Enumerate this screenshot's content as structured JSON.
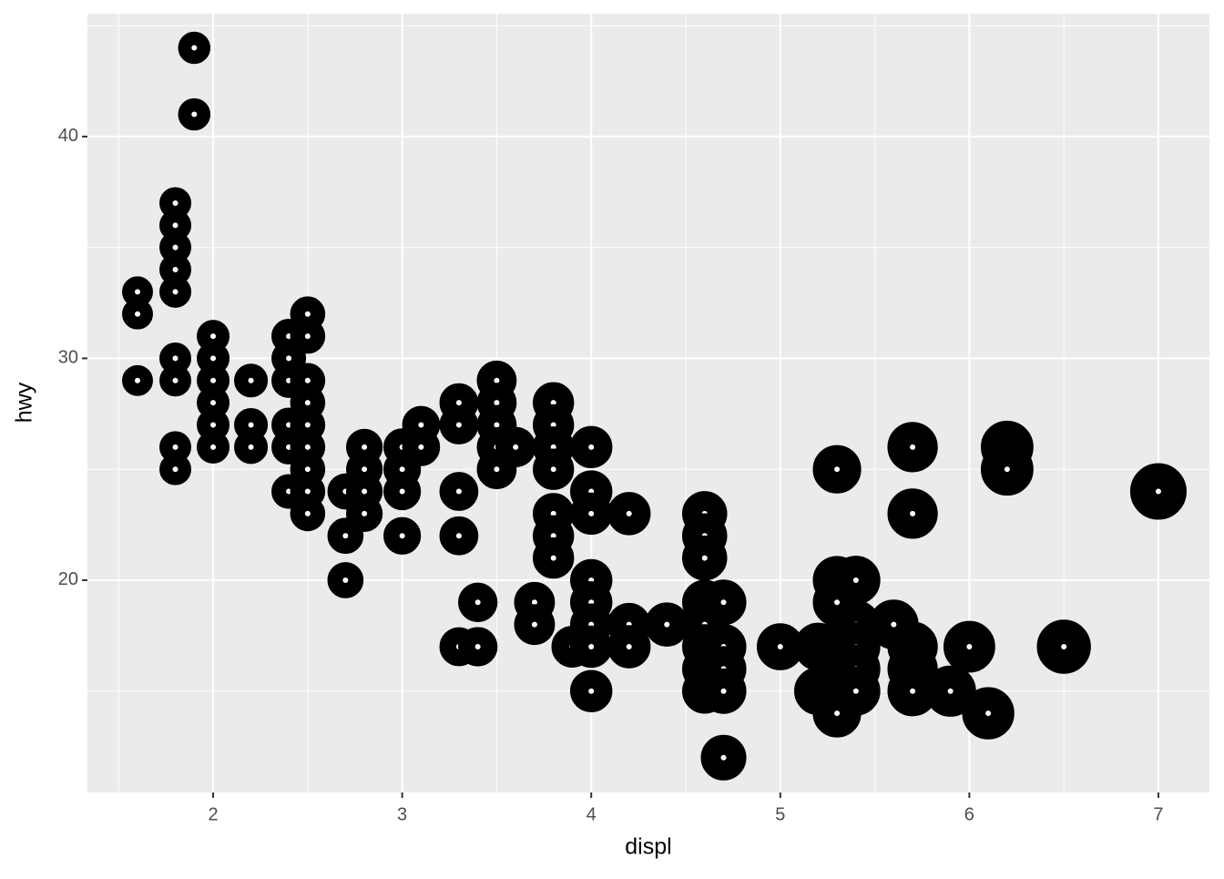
{
  "chart_data": {
    "type": "scatter",
    "x_label": "displ",
    "y_label": "hwy",
    "x": [
      1.6,
      1.6,
      1.6,
      1.8,
      1.8,
      1.8,
      1.8,
      1.8,
      1.8,
      1.8,
      1.8,
      1.8,
      1.9,
      1.9,
      2.0,
      2.0,
      2.0,
      2.0,
      2.0,
      2.0,
      2.2,
      2.2,
      2.2,
      2.4,
      2.4,
      2.4,
      2.4,
      2.4,
      2.4,
      2.5,
      2.5,
      2.5,
      2.5,
      2.5,
      2.5,
      2.5,
      2.5,
      2.5,
      2.7,
      2.7,
      2.7,
      2.8,
      2.8,
      2.8,
      2.8,
      3.0,
      3.0,
      3.0,
      3.0,
      3.1,
      3.1,
      3.3,
      3.3,
      3.3,
      3.3,
      3.3,
      3.4,
      3.4,
      3.5,
      3.5,
      3.5,
      3.5,
      3.5,
      3.6,
      3.7,
      3.7,
      3.8,
      3.8,
      3.8,
      3.8,
      3.8,
      3.8,
      3.8,
      3.9,
      4.0,
      4.0,
      4.0,
      4.0,
      4.0,
      4.0,
      4.0,
      4.0,
      4.2,
      4.2,
      4.2,
      4.4,
      4.6,
      4.6,
      4.6,
      4.6,
      4.6,
      4.6,
      4.6,
      4.6,
      4.7,
      4.7,
      4.7,
      4.7,
      4.7,
      5.0,
      5.2,
      5.2,
      5.3,
      5.3,
      5.3,
      5.3,
      5.3,
      5.3,
      5.3,
      5.4,
      5.4,
      5.4,
      5.4,
      5.4,
      5.6,
      5.7,
      5.7,
      5.7,
      5.7,
      5.7,
      5.9,
      6.0,
      6.1,
      6.2,
      6.2,
      6.5,
      7.0
    ],
    "y": [
      33,
      32,
      29,
      37,
      36,
      35,
      34,
      33,
      30,
      29,
      26,
      25,
      44,
      41,
      31,
      30,
      29,
      28,
      27,
      26,
      29,
      27,
      26,
      31,
      30,
      29,
      27,
      26,
      24,
      32,
      31,
      29,
      28,
      27,
      26,
      25,
      24,
      23,
      24,
      22,
      20,
      26,
      25,
      24,
      23,
      26,
      25,
      24,
      22,
      27,
      26,
      28,
      27,
      24,
      22,
      17,
      19,
      17,
      29,
      28,
      27,
      26,
      25,
      26,
      19,
      18,
      28,
      27,
      26,
      25,
      23,
      22,
      21,
      17,
      26,
      24,
      23,
      20,
      19,
      18,
      17,
      15,
      23,
      18,
      17,
      18,
      23,
      22,
      21,
      19,
      18,
      17,
      16,
      15,
      19,
      17,
      16,
      15,
      12,
      17,
      17,
      15,
      25,
      20,
      19,
      17,
      16,
      15,
      14,
      20,
      18,
      17,
      16,
      15,
      18,
      26,
      23,
      17,
      16,
      15,
      15,
      17,
      14,
      26,
      25,
      17,
      24
    ],
    "xlim": [
      1.335,
      7.27
    ],
    "ylim": [
      10.43,
      45.54
    ],
    "xticks": [
      2,
      3,
      4,
      5,
      6,
      7
    ],
    "yticks": [
      20,
      30,
      40
    ],
    "grid": true,
    "color": "#000000"
  }
}
